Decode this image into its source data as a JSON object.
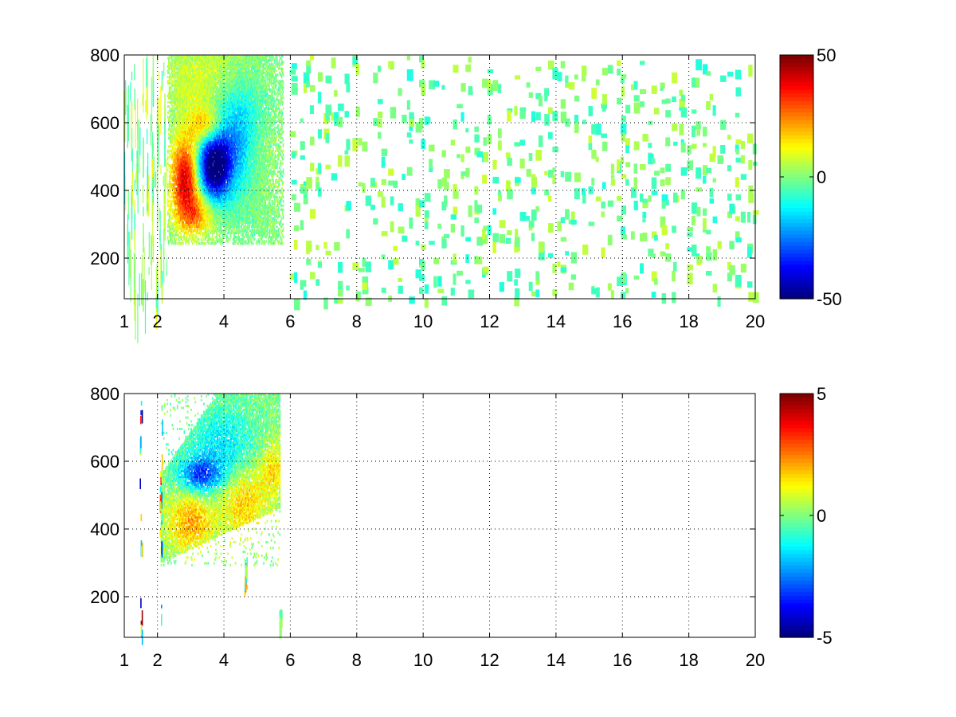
{
  "chart_data": [
    {
      "type": "heatmap",
      "title": "",
      "xlabel": "",
      "ylabel": "",
      "xlim": [
        1,
        20
      ],
      "ylim": [
        80,
        800
      ],
      "x_ticks": [
        1,
        2,
        4,
        6,
        8,
        10,
        12,
        14,
        16,
        18,
        20
      ],
      "x_tick_labels": [
        "1",
        "2",
        "4",
        "6",
        "8",
        "10",
        "12",
        "14",
        "16",
        "18",
        "20"
      ],
      "y_ticks": [
        200,
        400,
        600,
        800
      ],
      "y_tick_labels": [
        "200",
        "400",
        "600",
        "800"
      ],
      "grid": true,
      "colormap": "jet",
      "colorbar": {
        "limits": [
          -50,
          50
        ],
        "ticks": [
          -50,
          0,
          50
        ],
        "tick_labels": [
          "-50",
          "0",
          "50"
        ]
      },
      "blobs": [
        {
          "x": 3.7,
          "y": 470,
          "sx": 0.35,
          "sy": 70,
          "amp": -52
        },
        {
          "x": 4.4,
          "y": 560,
          "sx": 0.6,
          "sy": 110,
          "amp": -25
        },
        {
          "x": 2.85,
          "y": 440,
          "sx": 0.3,
          "sy": 80,
          "amp": 42
        },
        {
          "x": 3.5,
          "y": 590,
          "sx": 0.35,
          "sy": 40,
          "amp": 25
        },
        {
          "x": 3.2,
          "y": 330,
          "sx": 0.4,
          "sy": 45,
          "amp": 22
        },
        {
          "x": 3.5,
          "y": 720,
          "sx": 0.9,
          "sy": 80,
          "amp": 10
        },
        {
          "x": 5.0,
          "y": 520,
          "sx": 0.45,
          "sy": 90,
          "amp": 10
        }
      ],
      "dense_region": {
        "x": [
          2.3,
          5.8
        ],
        "y": [
          240,
          800
        ]
      },
      "sparse_background": {
        "x": [
          1,
          20
        ],
        "y": [
          80,
          800
        ],
        "values": [
          -10,
          8
        ]
      }
    },
    {
      "type": "heatmap",
      "title": "",
      "xlabel": "",
      "ylabel": "",
      "xlim": [
        1,
        20
      ],
      "ylim": [
        80,
        800
      ],
      "x_ticks": [
        1,
        2,
        4,
        6,
        8,
        10,
        12,
        14,
        16,
        18,
        20
      ],
      "x_tick_labels": [
        "1",
        "2",
        "4",
        "6",
        "8",
        "10",
        "12",
        "14",
        "16",
        "18",
        "20"
      ],
      "y_ticks": [
        200,
        400,
        600,
        800
      ],
      "y_tick_labels": [
        "200",
        "400",
        "600",
        "800"
      ],
      "grid": true,
      "colormap": "jet",
      "colorbar": {
        "limits": [
          -5,
          5
        ],
        "ticks": [
          -5,
          0,
          5
        ],
        "tick_labels": [
          "-5",
          "0",
          "5"
        ]
      },
      "blobs": [
        {
          "x": 3.3,
          "y": 560,
          "sx": 0.45,
          "sy": 35,
          "amp": -3.0
        },
        {
          "x": 4.0,
          "y": 640,
          "sx": 0.7,
          "sy": 80,
          "amp": -1.5
        },
        {
          "x": 3.0,
          "y": 420,
          "sx": 0.5,
          "sy": 60,
          "amp": 2.2
        },
        {
          "x": 4.6,
          "y": 480,
          "sx": 0.5,
          "sy": 80,
          "amp": 1.8
        },
        {
          "x": 5.5,
          "y": 580,
          "sx": 0.3,
          "sy": 60,
          "amp": 1.5
        }
      ],
      "dense_region": {
        "x": [
          2.1,
          5.7
        ],
        "y": [
          290,
          800
        ],
        "slant": true
      },
      "streaks": [
        {
          "x": 2.1,
          "y": [
            130,
            730
          ],
          "values": [
            -4,
            4
          ]
        },
        {
          "x": 1.5,
          "y": [
            80,
            780
          ],
          "values": [
            -5,
            5
          ]
        },
        {
          "x": 4.65,
          "y": [
            210,
            320
          ],
          "values": [
            -2,
            3
          ]
        },
        {
          "x": 5.7,
          "y": [
            120,
            170
          ],
          "values": [
            -1,
            1
          ]
        }
      ]
    }
  ]
}
